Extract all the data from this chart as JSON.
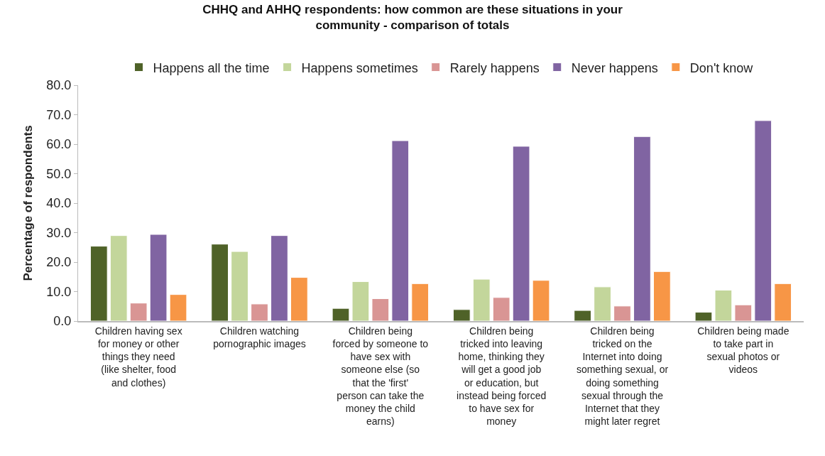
{
  "chart_data": {
    "type": "bar",
    "title": "CHHQ and AHHQ respondents: how common are these situations in your community - comparison of totals",
    "ylabel": "Percentage of respondents",
    "categories": [
      "Children having sex for money or other things they need (like shelter, food and clothes)",
      "Children watching pornographic images",
      "Children being forced by someone to have sex with someone else (so that the 'first' person can take the money the child earns)",
      "Children being tricked into leaving home, thinking they will get a good job or education, but instead being forced to have sex for money",
      "Children being tricked on the Internet into doing something sexual, or doing something sexual through the Internet that they might later regret",
      "Children being made to take part in sexual photos or videos"
    ],
    "series": [
      {
        "name": "Happens all the time",
        "color": "#4f6228",
        "values": [
          25.4,
          26.1,
          4.3,
          3.9,
          3.6,
          3.0
        ]
      },
      {
        "name": "Happens sometimes",
        "color": "#c3d69b",
        "values": [
          29.0,
          23.6,
          13.4,
          14.2,
          11.6,
          10.5
        ]
      },
      {
        "name": "Rarely happens",
        "color": "#d99594",
        "values": [
          6.1,
          5.8,
          7.6,
          8.0,
          5.1,
          5.5
        ]
      },
      {
        "name": "Never happens",
        "color": "#8064a2",
        "values": [
          29.4,
          29.0,
          61.2,
          59.3,
          62.6,
          68.0
        ]
      },
      {
        "name": "Don't know",
        "color": "#f79646",
        "values": [
          9.0,
          14.8,
          12.7,
          13.8,
          16.8,
          12.7
        ]
      }
    ],
    "ylim": [
      0,
      80
    ],
    "yticks": [
      {
        "value": 0,
        "label": "0.0"
      },
      {
        "value": 10,
        "label": "10.0"
      },
      {
        "value": 20,
        "label": "20.0"
      },
      {
        "value": 30,
        "label": "30.0"
      },
      {
        "value": 40,
        "label": "40.0"
      },
      {
        "value": 50,
        "label": "50.0"
      },
      {
        "value": 60,
        "label": "60.0"
      },
      {
        "value": 70,
        "label": "70.0"
      },
      {
        "value": 80,
        "label": "80.0"
      }
    ],
    "legend": "top"
  }
}
